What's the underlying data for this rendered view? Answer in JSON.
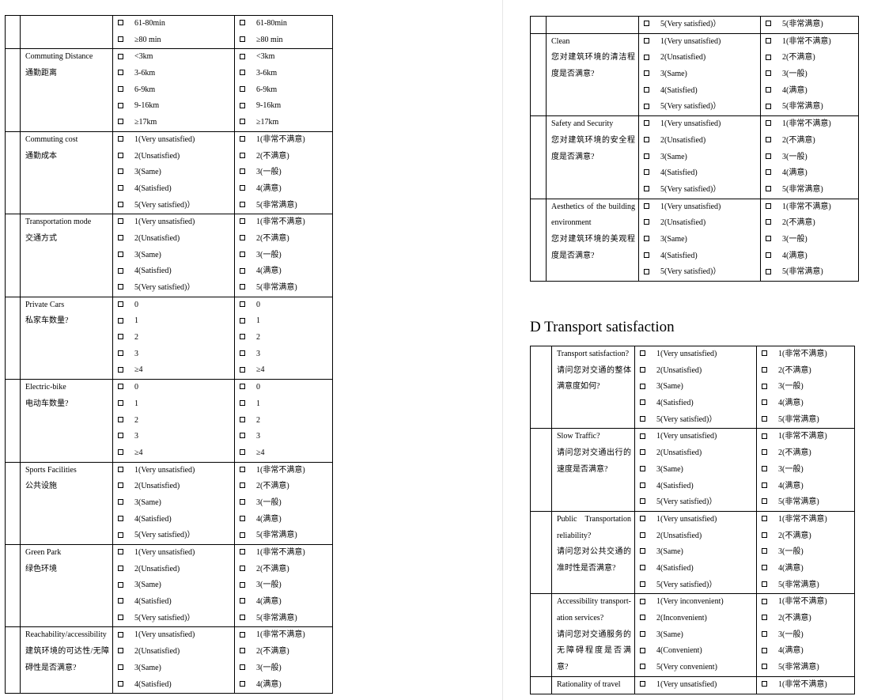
{
  "left": {
    "rows": [
      {
        "label": [],
        "en": [
          "61-80min",
          "≥80 min"
        ],
        "zh": [
          "61-80min",
          "≥80 min"
        ]
      },
      {
        "label": [
          "Commuting Distance",
          "通勤距离"
        ],
        "en": [
          "<3km",
          "3-6km",
          "6-9km",
          "9-16km",
          "≥17km"
        ],
        "zh": [
          "<3km",
          "3-6km",
          "6-9km",
          "9-16km",
          "≥17km"
        ]
      },
      {
        "label": [
          "Commuting cost",
          "通勤成本"
        ],
        "en": [
          "1(Very unsatisfied)",
          "2(Unsatisfied)",
          "3(Same)",
          "4(Satisfied)",
          "5(Very satisfied)）"
        ],
        "zh": [
          "1(非常不满意)",
          "2(不满意)",
          "3(一般)",
          "4(满意)",
          "5(非常满意)"
        ]
      },
      {
        "label": [
          "Transportation mode",
          "交通方式"
        ],
        "en": [
          "1(Very unsatisfied)",
          "2(Unsatisfied)",
          "3(Same)",
          "4(Satisfied)",
          "5(Very satisfied)）"
        ],
        "zh": [
          "1(非常不满意)",
          "2(不满意)",
          "3(一般)",
          "4(满意)",
          "5(非常满意)"
        ]
      },
      {
        "label": [
          "Private Cars",
          "私家车数量?"
        ],
        "en": [
          "0",
          "1",
          "2",
          "3",
          "≥4"
        ],
        "zh": [
          "0",
          "1",
          "2",
          "3",
          "≥4"
        ]
      },
      {
        "label": [
          "Electric-bike",
          "电动车数量?"
        ],
        "en": [
          "0",
          "1",
          "2",
          "3",
          "≥4"
        ],
        "zh": [
          "0",
          "1",
          "2",
          "3",
          "≥4"
        ]
      },
      {
        "label": [
          "Sports Facilities",
          "公共设施"
        ],
        "en": [
          "1(Very unsatisfied)",
          "2(Unsatisfied)",
          "3(Same)",
          "4(Satisfied)",
          "5(Very satisfied)）"
        ],
        "zh": [
          "1(非常不满意)",
          "2(不满意)",
          "3(一般)",
          "4(满意)",
          "5(非常满意)"
        ]
      },
      {
        "label": [
          "Green Park",
          "绿色环境"
        ],
        "en": [
          "1(Very unsatisfied)",
          "2(Unsatisfied)",
          "3(Same)",
          "4(Satisfied)",
          "5(Very satisfied)）"
        ],
        "zh": [
          "1(非常不满意)",
          "2(不满意)",
          "3(一般)",
          "4(满意)",
          "5(非常满意)"
        ]
      },
      {
        "label": [
          "Reachability/accessibility",
          "建筑环境的可达性/无障碍性是否满意?"
        ],
        "en": [
          "1(Very unsatisfied)",
          "2(Unsatisfied)",
          "3(Same)",
          "4(Satisfied)"
        ],
        "zh": [
          "1(非常不满意)",
          "2(不满意)",
          "3(一般)",
          "4(满意)"
        ]
      }
    ]
  },
  "right_top": {
    "rows": [
      {
        "label": [],
        "en": [
          "5(Very satisfied)）"
        ],
        "zh": [
          "5(非常满意)"
        ]
      },
      {
        "label": [
          "Clean",
          "您对建筑环境的清洁程度是否满意?"
        ],
        "en": [
          "1(Very unsatisfied)",
          "2(Unsatisfied)",
          "3(Same)",
          "4(Satisfied)",
          "5(Very satisfied)）"
        ],
        "zh": [
          "1(非常不满意)",
          "2(不满意)",
          "3(一般)",
          "4(满意)",
          "5(非常满意)"
        ]
      },
      {
        "label": [
          "Safety and Security",
          "您对建筑环境的安全程度是否满意?"
        ],
        "en": [
          "1(Very unsatisfied)",
          "2(Unsatisfied)",
          "3(Same)",
          "4(Satisfied)",
          "5(Very satisfied)）"
        ],
        "zh": [
          "1(非常不满意)",
          "2(不满意)",
          "3(一般)",
          "4(满意)",
          "5(非常满意)"
        ]
      },
      {
        "label": [
          "Aesthetics of the building environment",
          "您对建筑环境的美观程度是否满意?"
        ],
        "en": [
          "1(Very unsatisfied)",
          "2(Unsatisfied)",
          "3(Same)",
          "4(Satisfied)",
          "5(Very satisfied)）"
        ],
        "zh": [
          "1(非常不满意)",
          "2(不满意)",
          "3(一般)",
          "4(满意)",
          "5(非常满意)"
        ]
      }
    ]
  },
  "heading": "D Transport satisfaction",
  "right_bottom": {
    "rows": [
      {
        "label": [
          "Transport satisfaction?",
          "请问您对交通的整体满意度如何?"
        ],
        "en": [
          "1(Very unsatisfied)",
          "2(Unsatisfied)",
          "3(Same)",
          "4(Satisfied)",
          "5(Very satisfied)）"
        ],
        "zh": [
          "1(非常不满意)",
          "2(不满意)",
          "3(一般)",
          "4(满意)",
          "5(非常满意)"
        ]
      },
      {
        "label": [
          "Slow Traffic?",
          "请问您对交通出行的速度是否满意?"
        ],
        "en": [
          "1(Very unsatisfied)",
          "2(Unsatisfied)",
          "3(Same)",
          "4(Satisfied)",
          "5(Very satisfied)）"
        ],
        "zh": [
          "1(非常不满意)",
          "2(不满意)",
          "3(一般)",
          "4(满意)",
          "5(非常满意)"
        ]
      },
      {
        "label": [
          "Public Transportation reliability?",
          "请问您对公共交通的准时性是否满意?"
        ],
        "en": [
          "1(Very unsatisfied)",
          "2(Unsatisfied)",
          "3(Same)",
          "4(Satisfied)",
          "5(Very satisfied)）"
        ],
        "zh": [
          "1(非常不满意)",
          "2(不满意)",
          "3(一般)",
          "4(满意)",
          "5(非常满意)"
        ]
      },
      {
        "label": [
          "Accessibility transport-ation services?",
          "请问您对交通服务的无障碍程度是否满意?"
        ],
        "en": [
          "1(Very inconvenient)",
          "2(Inconvenient)",
          "3(Same)",
          "4(Convenient)",
          "5(Very convenient)"
        ],
        "zh": [
          "1(非常不满意)",
          "2(不满意)",
          "3(一般)",
          "4(满意)",
          "5(非常满意)"
        ]
      },
      {
        "label": [
          "Rationality of travel"
        ],
        "en": [
          "1(Very unsatisfied)"
        ],
        "zh": [
          "1(非常不满意)"
        ]
      }
    ]
  }
}
